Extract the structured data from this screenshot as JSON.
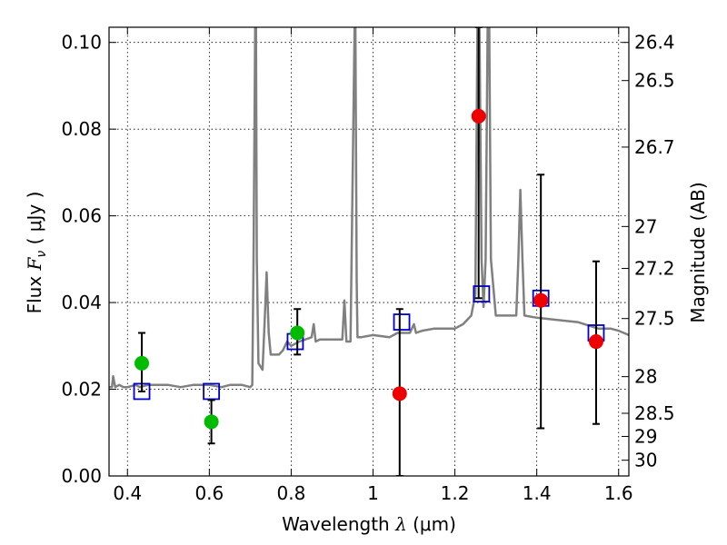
{
  "chart_data": {
    "type": "scatter",
    "xlabel": "Wavelength  λ (μm)",
    "ylabel": "Flux  F_ν  ( μJy )",
    "ylabel_parts": {
      "prefix": "Flux  ",
      "symbol": "F",
      "subscript": "ν",
      "suffix": "  ( μJy )"
    },
    "xlabel_parts": {
      "prefix": "Wavelength  ",
      "symbol": "λ",
      "suffix": " (μm)"
    },
    "y2label": "Magnitude (AB)",
    "xlim": [
      0.355,
      1.625
    ],
    "ylim": [
      0.0,
      0.1035
    ],
    "grid": true,
    "x_ticks": [
      {
        "value": 0.4,
        "label": "0.4"
      },
      {
        "value": 0.6,
        "label": "0.6"
      },
      {
        "value": 0.8,
        "label": "0.8"
      },
      {
        "value": 1.0,
        "label": "1"
      },
      {
        "value": 1.2,
        "label": "1.2"
      },
      {
        "value": 1.4,
        "label": "1.4"
      },
      {
        "value": 1.6,
        "label": "1.6"
      }
    ],
    "y_ticks": [
      {
        "value": 0.0,
        "label": "0.00"
      },
      {
        "value": 0.02,
        "label": "0.02"
      },
      {
        "value": 0.04,
        "label": "0.04"
      },
      {
        "value": 0.06,
        "label": "0.06"
      },
      {
        "value": 0.08,
        "label": "0.08"
      },
      {
        "value": 0.1,
        "label": "0.10"
      }
    ],
    "y2_ticks": [
      {
        "value": 26.4,
        "label": "26.4"
      },
      {
        "value": 26.5,
        "label": "26.5"
      },
      {
        "value": 26.7,
        "label": "26.7"
      },
      {
        "value": 27.0,
        "label": "27"
      },
      {
        "value": 27.2,
        "label": "27.2"
      },
      {
        "value": 27.5,
        "label": "27.5"
      },
      {
        "value": 28.0,
        "label": "28"
      },
      {
        "value": 28.5,
        "label": "28.5"
      },
      {
        "value": 29.0,
        "label": "29"
      },
      {
        "value": 30.0,
        "label": "30"
      }
    ],
    "series": [
      {
        "kind": "spectrum",
        "color": "#808080",
        "x": [
          0.355,
          0.362,
          0.365,
          0.37,
          0.38,
          0.39,
          0.4,
          0.42,
          0.43,
          0.45,
          0.47,
          0.5,
          0.53,
          0.56,
          0.6,
          0.63,
          0.65,
          0.68,
          0.7,
          0.705,
          0.708,
          0.712,
          0.714,
          0.716,
          0.72,
          0.73,
          0.735,
          0.74,
          0.745,
          0.75,
          0.77,
          0.78,
          0.79,
          0.8,
          0.82,
          0.85,
          0.855,
          0.86,
          0.87,
          0.9,
          0.925,
          0.93,
          0.935,
          0.945,
          0.955,
          0.957,
          0.96,
          0.962,
          0.97,
          1.0,
          1.04,
          1.06,
          1.09,
          1.1,
          1.105,
          1.12,
          1.15,
          1.2,
          1.22,
          1.24,
          1.25,
          1.255,
          1.26,
          1.265,
          1.27,
          1.275,
          1.28,
          1.284,
          1.288,
          1.3,
          1.33,
          1.35,
          1.355,
          1.36,
          1.365,
          1.37,
          1.4,
          1.45,
          1.5,
          1.55,
          1.58,
          1.6,
          1.625
        ],
        "y": [
          0.0205,
          0.0205,
          0.023,
          0.0205,
          0.021,
          0.0205,
          0.0205,
          0.021,
          0.0205,
          0.021,
          0.021,
          0.021,
          0.0205,
          0.021,
          0.021,
          0.0205,
          0.021,
          0.021,
          0.0205,
          0.021,
          0.05,
          0.1035,
          0.1035,
          0.05,
          0.026,
          0.0245,
          0.035,
          0.047,
          0.033,
          0.028,
          0.028,
          0.029,
          0.031,
          0.03,
          0.031,
          0.032,
          0.035,
          0.031,
          0.0315,
          0.0315,
          0.0315,
          0.0405,
          0.031,
          0.031,
          0.1035,
          0.1035,
          0.045,
          0.032,
          0.032,
          0.0325,
          0.032,
          0.033,
          0.033,
          0.035,
          0.033,
          0.0335,
          0.034,
          0.034,
          0.035,
          0.037,
          0.042,
          0.1035,
          0.1035,
          0.05,
          0.039,
          0.05,
          0.1035,
          0.1035,
          0.05,
          0.037,
          0.037,
          0.037,
          0.05,
          0.066,
          0.05,
          0.037,
          0.0365,
          0.036,
          0.0355,
          0.034,
          0.034,
          0.0335,
          0.0325
        ]
      },
      {
        "kind": "model-squares",
        "color": "#0000cc",
        "x": [
          0.435,
          0.605,
          0.81,
          1.07,
          1.265,
          1.41,
          1.545
        ],
        "y": [
          0.0195,
          0.0195,
          0.031,
          0.0355,
          0.042,
          0.041,
          0.033
        ]
      },
      {
        "kind": "points-green",
        "color": "#00bb00",
        "points": [
          {
            "x": 0.435,
            "y": 0.026,
            "ylo": 0.0195,
            "yhi": 0.033
          },
          {
            "x": 0.605,
            "y": 0.0125,
            "ylo": 0.0075,
            "yhi": 0.0175
          },
          {
            "x": 0.815,
            "y": 0.033,
            "ylo": 0.028,
            "yhi": 0.0385
          }
        ]
      },
      {
        "kind": "points-red",
        "color": "#ee0000",
        "points": [
          {
            "x": 1.065,
            "y": 0.019,
            "ylo": 0.0,
            "yhi": 0.0385
          },
          {
            "x": 1.258,
            "y": 0.083,
            "ylo": 0.041,
            "yhi": 0.1035
          },
          {
            "x": 1.41,
            "y": 0.0405,
            "ylo": 0.011,
            "yhi": 0.0695
          },
          {
            "x": 1.545,
            "y": 0.031,
            "ylo": 0.012,
            "yhi": 0.0495
          }
        ]
      }
    ]
  }
}
